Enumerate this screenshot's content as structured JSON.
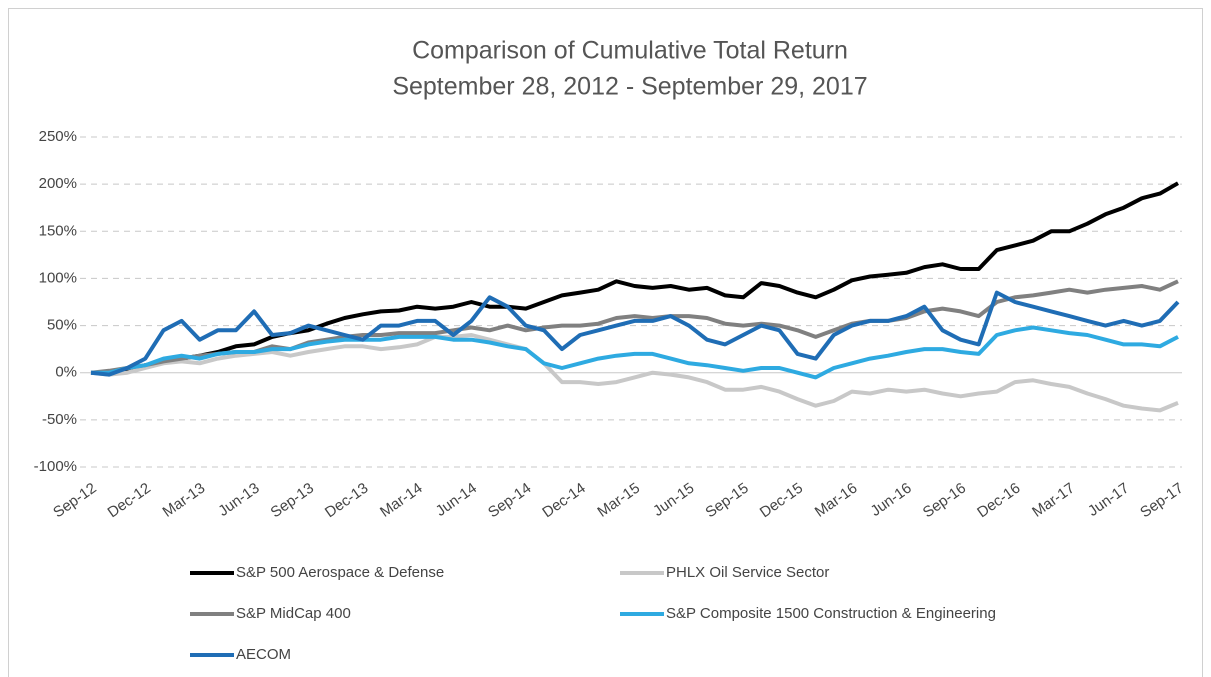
{
  "chart_data": {
    "type": "line",
    "title": "Comparison of Cumulative Total Return",
    "subtitle": "September 28, 2012 - September 29, 2017",
    "categories": [
      "Sep-12",
      null,
      null,
      "Dec-12",
      null,
      null,
      "Mar-13",
      null,
      null,
      "Jun-13",
      null,
      null,
      "Sep-13",
      null,
      null,
      "Dec-13",
      null,
      null,
      "Mar-14",
      null,
      null,
      "Jun-14",
      null,
      null,
      "Sep-14",
      null,
      null,
      "Dec-14",
      null,
      null,
      "Mar-15",
      null,
      null,
      "Jun-15",
      null,
      null,
      "Sep-15",
      null,
      null,
      "Dec-15",
      null,
      null,
      "Mar-16",
      null,
      null,
      "Jun-16",
      null,
      null,
      "Sep-16",
      null,
      null,
      "Dec-16",
      null,
      null,
      "Mar-17",
      null,
      null,
      "Jun-17",
      null,
      null,
      "Sep-17"
    ],
    "series": [
      {
        "name": "S&P 500 Aerospace & Defense",
        "color": "#000000",
        "values": [
          0,
          0,
          3,
          8,
          12,
          15,
          18,
          22,
          28,
          30,
          38,
          42,
          45,
          52,
          58,
          62,
          65,
          66,
          70,
          68,
          70,
          75,
          70,
          70,
          68,
          75,
          82,
          85,
          88,
          97,
          92,
          90,
          92,
          88,
          90,
          82,
          80,
          95,
          92,
          85,
          80,
          88,
          98,
          102,
          104,
          106,
          112,
          115,
          110,
          110,
          130,
          135,
          140,
          150,
          150,
          158,
          168,
          175,
          185,
          190,
          201
        ]
      },
      {
        "name": "PHLX Oil Service Sector",
        "color": "#c8c8c8",
        "values": [
          0,
          -2,
          0,
          5,
          10,
          12,
          10,
          15,
          18,
          20,
          22,
          18,
          22,
          25,
          28,
          28,
          25,
          27,
          30,
          38,
          38,
          40,
          35,
          30,
          25,
          10,
          -10,
          -10,
          -12,
          -10,
          -5,
          0,
          -2,
          -5,
          -10,
          -18,
          -18,
          -15,
          -20,
          -28,
          -35,
          -30,
          -20,
          -22,
          -18,
          -20,
          -18,
          -22,
          -25,
          -22,
          -20,
          -10,
          -8,
          -12,
          -15,
          -22,
          -28,
          -35,
          -38,
          -40,
          -32
        ]
      },
      {
        "name": "S&P MidCap 400",
        "color": "#808080",
        "values": [
          0,
          2,
          5,
          8,
          12,
          15,
          18,
          20,
          22,
          22,
          28,
          25,
          32,
          35,
          38,
          40,
          40,
          42,
          42,
          42,
          45,
          48,
          45,
          50,
          45,
          48,
          50,
          50,
          52,
          58,
          60,
          58,
          60,
          60,
          58,
          52,
          50,
          52,
          50,
          45,
          38,
          45,
          52,
          55,
          55,
          58,
          65,
          68,
          65,
          60,
          75,
          80,
          82,
          85,
          88,
          85,
          88,
          90,
          92,
          88,
          97
        ]
      },
      {
        "name": "S&P Composite 1500 Construction & Engineering",
        "color": "#2eaae1",
        "values": [
          0,
          0,
          5,
          8,
          15,
          18,
          15,
          20,
          22,
          22,
          25,
          25,
          30,
          33,
          35,
          35,
          35,
          38,
          38,
          38,
          35,
          35,
          32,
          28,
          25,
          10,
          5,
          10,
          15,
          18,
          20,
          20,
          15,
          10,
          8,
          5,
          2,
          5,
          5,
          0,
          -5,
          5,
          10,
          15,
          18,
          22,
          25,
          25,
          22,
          20,
          40,
          45,
          48,
          45,
          42,
          40,
          35,
          30,
          30,
          28,
          38
        ]
      },
      {
        "name": "AECOM",
        "color": "#1f6db5",
        "values": [
          0,
          -2,
          5,
          15,
          45,
          55,
          35,
          45,
          45,
          65,
          40,
          42,
          50,
          45,
          40,
          35,
          50,
          50,
          55,
          55,
          40,
          55,
          80,
          70,
          50,
          45,
          25,
          40,
          45,
          50,
          55,
          55,
          60,
          50,
          35,
          30,
          40,
          50,
          45,
          20,
          15,
          40,
          50,
          55,
          55,
          60,
          70,
          45,
          35,
          30,
          85,
          75,
          70,
          65,
          60,
          55,
          50,
          55,
          50,
          55,
          75
        ]
      }
    ],
    "ylim": [
      -100,
      250
    ],
    "yticks": [
      {
        "value": -100,
        "label": "-100%"
      },
      {
        "value": -50,
        "label": "-50%"
      },
      {
        "value": 0,
        "label": "0%"
      },
      {
        "value": 50,
        "label": "50%"
      },
      {
        "value": 100,
        "label": "100%"
      },
      {
        "value": 150,
        "label": "150%"
      },
      {
        "value": 200,
        "label": "200%"
      },
      {
        "value": 250,
        "label": "250%"
      }
    ],
    "grid": true
  }
}
